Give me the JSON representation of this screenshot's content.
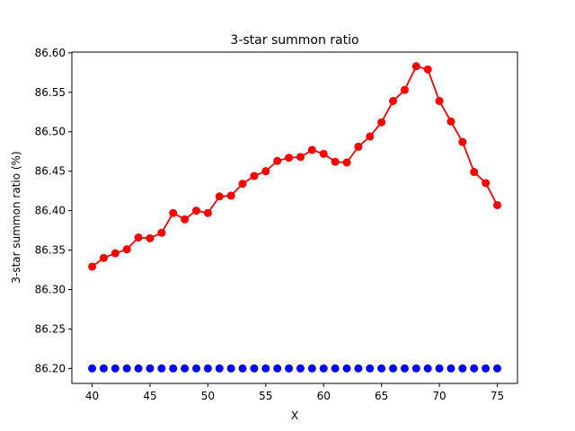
{
  "chart_data": {
    "type": "line",
    "title": "3-star summon ratio",
    "xlabel": "X",
    "ylabel": "3-star summon ratio (%)",
    "xlim": [
      38.25,
      76.75
    ],
    "ylim": [
      86.181,
      86.601
    ],
    "xticks": [
      40,
      45,
      50,
      55,
      60,
      65,
      70,
      75
    ],
    "yticks": [
      86.2,
      86.25,
      86.3,
      86.35,
      86.4,
      86.45,
      86.5,
      86.55,
      86.6
    ],
    "grid": false,
    "x": [
      40,
      41,
      42,
      43,
      44,
      45,
      46,
      47,
      48,
      49,
      50,
      51,
      52,
      53,
      54,
      55,
      56,
      57,
      58,
      59,
      60,
      61,
      62,
      63,
      64,
      65,
      66,
      67,
      68,
      69,
      70,
      71,
      72,
      73,
      74,
      75
    ],
    "series": [
      {
        "color": "#ff0000",
        "marker": "circle",
        "line": true,
        "values": [
          86.329,
          86.34,
          86.346,
          86.351,
          86.366,
          86.365,
          86.372,
          86.397,
          86.389,
          86.4,
          86.397,
          86.418,
          86.419,
          86.434,
          86.444,
          86.45,
          86.463,
          86.467,
          86.468,
          86.477,
          86.472,
          86.462,
          86.461,
          86.481,
          86.494,
          86.512,
          86.539,
          86.553,
          86.583,
          86.579,
          86.539,
          86.513,
          86.487,
          86.449,
          86.435,
          86.407
        ]
      },
      {
        "color": "#0000ff",
        "marker": "circle",
        "line": false,
        "values": [
          86.2,
          86.2,
          86.2,
          86.2,
          86.2,
          86.2,
          86.2,
          86.2,
          86.2,
          86.2,
          86.2,
          86.2,
          86.2,
          86.2,
          86.2,
          86.2,
          86.2,
          86.2,
          86.2,
          86.2,
          86.2,
          86.2,
          86.2,
          86.2,
          86.2,
          86.2,
          86.2,
          86.2,
          86.2,
          86.2,
          86.2,
          86.2,
          86.2,
          86.2,
          86.2,
          86.2
        ]
      }
    ]
  }
}
